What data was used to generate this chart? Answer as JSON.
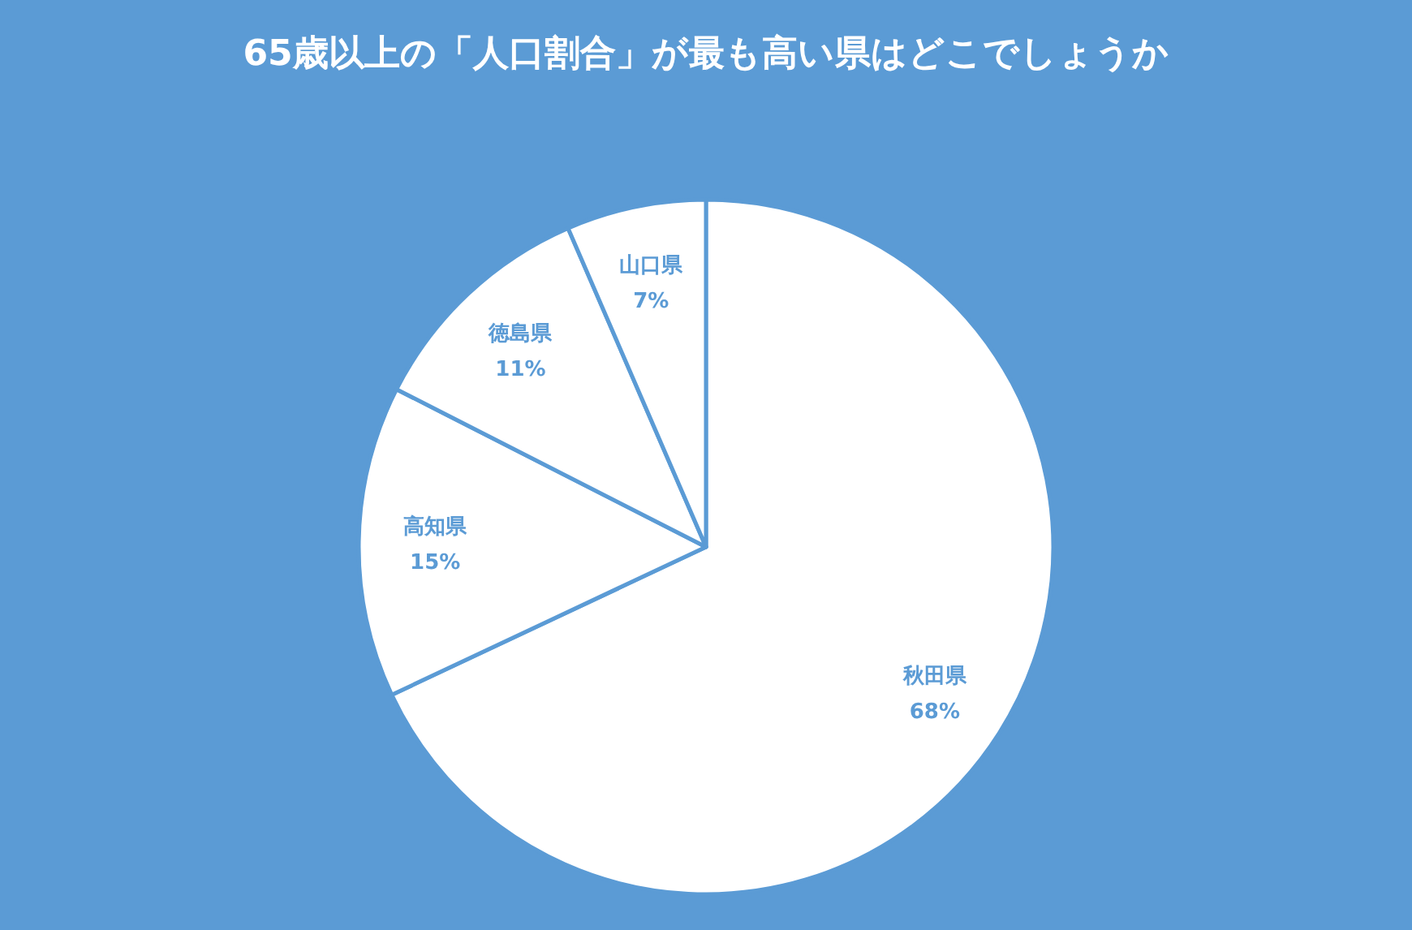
{
  "chart_data": {
    "type": "pie",
    "title": "65歳以上の「人口割合」が最も高い県はどこでしょうか",
    "categories": [
      "秋田県",
      "高知県",
      "徳島県",
      "山口県"
    ],
    "values": [
      68.0,
      14.5,
      11.0,
      6.5
    ],
    "value_labels": [
      "68%",
      "15%",
      "11%",
      "7%"
    ],
    "colors": [
      "#ffffff",
      "#ffffff",
      "#ffffff",
      "#ffffff"
    ],
    "legend": false
  }
}
